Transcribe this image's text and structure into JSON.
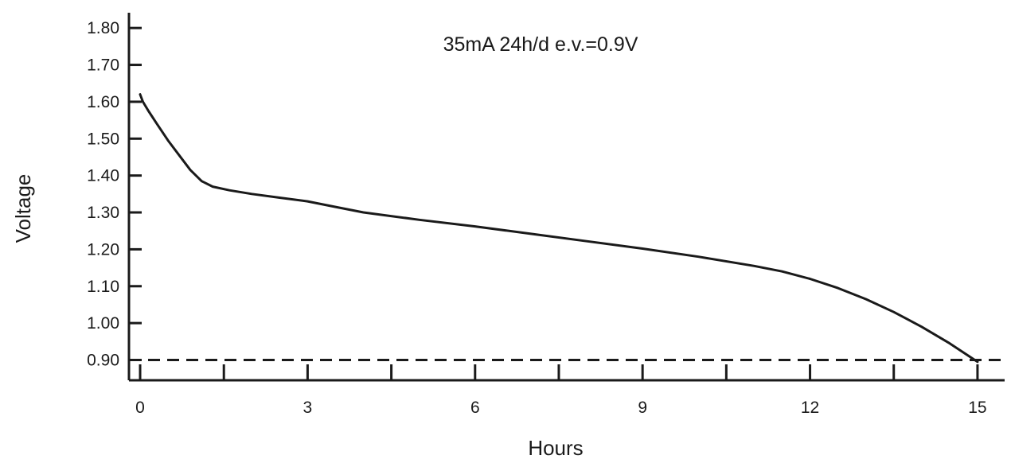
{
  "chart_data": {
    "type": "line",
    "title": "",
    "annotation": "35mA 24h/d e.v.=0.9V",
    "xlabel": "Hours",
    "ylabel": "Voltage",
    "xlim": [
      -0.2,
      15.6
    ],
    "ylim": [
      0.845,
      1.85
    ],
    "x_ticks": [
      0,
      3,
      6,
      9,
      12,
      15
    ],
    "x_tick_labels": [
      "0",
      "3",
      "6",
      "9",
      "12",
      "15"
    ],
    "x_minor_ticks": [
      1.5,
      4.5,
      7.5,
      10.5,
      13.5
    ],
    "y_ticks": [
      0.9,
      1.0,
      1.1,
      1.2,
      1.3,
      1.4,
      1.5,
      1.6,
      1.7,
      1.8
    ],
    "y_tick_labels": [
      "0.90",
      "1.00",
      "1.10",
      "1.20",
      "1.30",
      "1.40",
      "1.50",
      "1.60",
      "1.70",
      "1.80"
    ],
    "grid": false,
    "series": [
      {
        "x": [
          0,
          0.05,
          0.15,
          0.3,
          0.5,
          0.7,
          0.9,
          1.1,
          1.3,
          1.6,
          2.0,
          2.5,
          3.0,
          3.5,
          4.0,
          5.0,
          6.0,
          7.0,
          8.0,
          9.0,
          10.0,
          11.0,
          11.5,
          12.0,
          12.5,
          13.0,
          13.5,
          14.0,
          14.5,
          14.8,
          15.0
        ],
        "y": [
          1.62,
          1.6,
          1.575,
          1.54,
          1.495,
          1.455,
          1.415,
          1.385,
          1.37,
          1.36,
          1.35,
          1.34,
          1.33,
          1.315,
          1.3,
          1.28,
          1.262,
          1.242,
          1.222,
          1.202,
          1.18,
          1.155,
          1.14,
          1.12,
          1.095,
          1.065,
          1.03,
          0.99,
          0.945,
          0.915,
          0.895
        ]
      }
    ],
    "reference_lines": [
      {
        "orientation": "horizontal",
        "y": 0.9,
        "style": "dashed"
      }
    ]
  }
}
